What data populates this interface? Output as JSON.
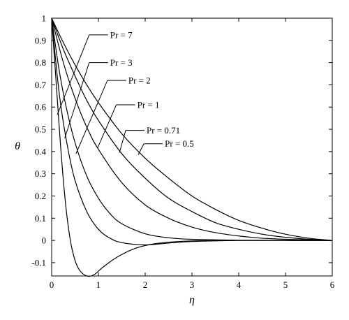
{
  "chart_data": {
    "type": "line",
    "title": "",
    "xlabel": "η",
    "ylabel": "θ",
    "xlim": [
      0,
      6
    ],
    "ylim": [
      -0.16,
      1
    ],
    "xticks": [
      "0",
      "1",
      "2",
      "3",
      "4",
      "5",
      "6"
    ],
    "yticks": [
      "-0.1",
      "0",
      "0.1",
      "0.2",
      "0.3",
      "0.4",
      "0.5",
      "0.6",
      "0.7",
      "0.8",
      "0.9",
      "1"
    ],
    "grid": false,
    "legend": "none",
    "line_color": "#000000",
    "series": [
      {
        "name": "Pr = 0.5",
        "x": [
          0,
          0.25,
          0.5,
          0.75,
          1,
          1.5,
          2,
          2.5,
          3,
          3.5,
          4,
          4.5,
          5,
          5.5,
          6
        ],
        "y": [
          1.0,
          0.89,
          0.79,
          0.7,
          0.62,
          0.48,
          0.37,
          0.28,
          0.2,
          0.14,
          0.09,
          0.055,
          0.028,
          0.01,
          0.0
        ]
      },
      {
        "name": "Pr = 0.71",
        "x": [
          0,
          0.25,
          0.5,
          0.75,
          1,
          1.5,
          2,
          2.5,
          3,
          3.5,
          4,
          4.5,
          5,
          5.5,
          6
        ],
        "y": [
          1.0,
          0.86,
          0.74,
          0.63,
          0.54,
          0.39,
          0.28,
          0.19,
          0.13,
          0.08,
          0.05,
          0.028,
          0.014,
          0.005,
          0.0
        ]
      },
      {
        "name": "Pr = 1",
        "x": [
          0,
          0.25,
          0.5,
          0.75,
          1,
          1.5,
          2,
          2.5,
          3,
          3.5,
          4,
          4.5,
          5,
          5.5,
          6
        ],
        "y": [
          1.0,
          0.8,
          0.64,
          0.51,
          0.41,
          0.26,
          0.16,
          0.1,
          0.06,
          0.035,
          0.02,
          0.01,
          0.005,
          0.002,
          0.0
        ]
      },
      {
        "name": "Pr = 2",
        "x": [
          0,
          0.15,
          0.3,
          0.5,
          0.75,
          1,
          1.25,
          1.5,
          2,
          2.5,
          3,
          4,
          5,
          6
        ],
        "y": [
          1.0,
          0.78,
          0.61,
          0.44,
          0.29,
          0.19,
          0.12,
          0.075,
          0.03,
          0.012,
          0.005,
          0.001,
          0.0,
          0.0
        ]
      },
      {
        "name": "Pr = 3",
        "x": [
          0,
          0.1,
          0.2,
          0.35,
          0.5,
          0.75,
          1,
          1.25,
          1.5,
          2,
          2.5,
          3,
          4,
          5,
          6
        ],
        "y": [
          1.0,
          0.78,
          0.6,
          0.41,
          0.27,
          0.13,
          0.05,
          0.01,
          -0.01,
          -0.02,
          -0.012,
          -0.005,
          0.0,
          0.0,
          0.0
        ]
      },
      {
        "name": "Pr = 7",
        "x": [
          0,
          0.05,
          0.1,
          0.2,
          0.3,
          0.4,
          0.5,
          0.6,
          0.75,
          0.9,
          1.1,
          1.4,
          1.8,
          2.2,
          2.7,
          3.2,
          4,
          5,
          6
        ],
        "y": [
          1.0,
          0.85,
          0.7,
          0.4,
          0.16,
          0.0,
          -0.09,
          -0.135,
          -0.16,
          -0.155,
          -0.12,
          -0.075,
          -0.035,
          -0.015,
          -0.005,
          -0.001,
          0.0,
          0.0,
          0.0
        ]
      }
    ],
    "annotations": [
      {
        "text": "Pr = 7",
        "series": "Pr = 7",
        "label_at": [
          1.25,
          0.925
        ],
        "arrow_to": [
          0.12,
          0.565
        ]
      },
      {
        "text": "Pr = 3",
        "series": "Pr = 3",
        "label_at": [
          1.25,
          0.8
        ],
        "arrow_to": [
          0.28,
          0.46
        ]
      },
      {
        "text": "Pr = 2",
        "series": "Pr = 2",
        "label_at": [
          1.64,
          0.72
        ],
        "arrow_to": [
          0.52,
          0.39
        ]
      },
      {
        "text": "Pr = 1",
        "series": "Pr = 1",
        "label_at": [
          1.83,
          0.61
        ],
        "arrow_to": [
          0.98,
          0.415
        ]
      },
      {
        "text": "Pr = 0.71",
        "series": "Pr = 0.71",
        "label_at": [
          2.03,
          0.495
        ],
        "arrow_to": [
          1.45,
          0.395
        ]
      },
      {
        "text": "Pr = 0.5",
        "series": "Pr = 0.5",
        "label_at": [
          2.42,
          0.435
        ],
        "arrow_to": [
          1.85,
          0.385
        ]
      }
    ]
  }
}
